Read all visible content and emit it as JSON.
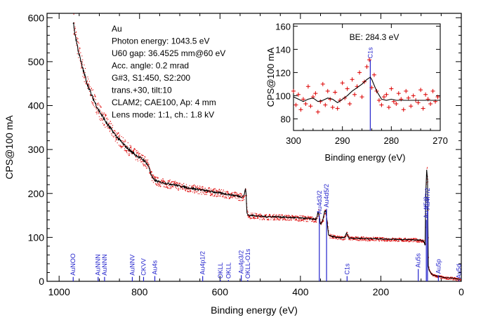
{
  "chart_data": [
    {
      "type": "scatter",
      "name": "main-survey",
      "xlabel": "Binding energy (eV)",
      "ylabel": "CPS@100 mA",
      "xlim": [
        1000,
        0
      ],
      "ylim": [
        0,
        600
      ],
      "xticks": [
        1000,
        800,
        600,
        400,
        200,
        0
      ],
      "yticks": [
        0,
        100,
        200,
        300,
        400,
        500,
        600
      ],
      "colors": {
        "raw": "#dd0000",
        "smoothed": "#000000",
        "markers": "#2222cc"
      },
      "annotations": [
        "Au",
        "Photon energy: 1043.5 eV",
        "U60 gap: 36.4525 mm@60 eV",
        "Acc. angle: 0.2 mrad",
        "G#3, S1:450, S2:200",
        "trans.+30, tilt:10",
        "CLAM2; CAE100, Ap: 4 mm",
        "Lens mode: 1:1, ch.: 1.8 kV"
      ],
      "series_smoothed": {
        "x": [
          965,
          960,
          950,
          940,
          930,
          920,
          910,
          900,
          890,
          880,
          870,
          860,
          850,
          840,
          830,
          820,
          810,
          800,
          790,
          780,
          775,
          770,
          765,
          760,
          750,
          740,
          720,
          700,
          680,
          660,
          640,
          620,
          600,
          580,
          560,
          545,
          540,
          537,
          535,
          533,
          530,
          520,
          500,
          480,
          460,
          440,
          420,
          400,
          380,
          370,
          360,
          356,
          353,
          350,
          345,
          340,
          337,
          333,
          330,
          320,
          310,
          300,
          290,
          285,
          282,
          280,
          270,
          250,
          230,
          210,
          190,
          170,
          150,
          130,
          110,
          100,
          95,
          92,
          90,
          88,
          86,
          84,
          83,
          82,
          80,
          75,
          70,
          60,
          50,
          40,
          30,
          20,
          10,
          5
        ],
        "y": [
          590,
          560,
          515,
          480,
          450,
          425,
          405,
          387,
          372,
          358,
          345,
          333,
          322,
          312,
          303,
          295,
          288,
          282,
          276,
          266,
          255,
          240,
          232,
          229,
          226,
          224,
          221,
          217,
          213,
          210,
          207,
          204,
          201,
          198,
          195,
          192,
          196,
          210,
          200,
          155,
          150,
          150,
          148,
          147,
          147,
          146,
          145,
          144,
          143,
          142,
          141,
          158,
          145,
          130,
          138,
          158,
          160,
          130,
          105,
          102,
          100,
          99,
          100,
          110,
          102,
          99,
          98,
          98,
          97,
          97,
          96,
          96,
          95,
          95,
          94,
          93,
          92,
          88,
          82,
          210,
          255,
          230,
          120,
          35,
          25,
          18,
          14,
          12,
          10,
          8,
          8,
          7,
          5,
          5
        ]
      },
      "peak_markers": [
        {
          "label": "AuNOO",
          "x": 965,
          "y": 10
        },
        {
          "label": "AuNNN",
          "x": 903,
          "y": 10
        },
        {
          "label": "AuNNN",
          "x": 887,
          "y": 10
        },
        {
          "label": "AuNNV",
          "x": 818,
          "y": 10
        },
        {
          "label": "CKVV",
          "x": 790,
          "y": 10
        },
        {
          "label": "Au4s",
          "x": 762,
          "y": 12
        },
        {
          "label": "Au4p1/2",
          "x": 643,
          "y": 12
        },
        {
          "label": "OKLL",
          "x": 599,
          "y": 3
        },
        {
          "label": "OKLL",
          "x": 579,
          "y": 3
        },
        {
          "label": "Au4p3/2",
          "x": 547,
          "y": 14
        },
        {
          "label": "OKLL-O1s",
          "x": 531,
          "y": 3
        },
        {
          "label": "Au4d3/2",
          "x": 353,
          "y": 150
        },
        {
          "label": "Au4d5/2",
          "x": 335,
          "y": 165
        },
        {
          "label": "C1s",
          "x": 284,
          "y": 12
        },
        {
          "label": "Au4f5/2",
          "x": 87,
          "y": 140
        },
        {
          "label": "Au4f7/2",
          "x": 84,
          "y": 160
        },
        {
          "label": "Au5s",
          "x": 107,
          "y": 28
        },
        {
          "label": "Au5p",
          "x": 57,
          "y": 14
        },
        {
          "label": "Au5d",
          "x": 6,
          "y": 3
        }
      ]
    },
    {
      "type": "scatter",
      "name": "inset-c1s",
      "xlabel": "Binding energy (eV)",
      "ylabel": "CPS@100 mA",
      "xlim": [
        300,
        270
      ],
      "ylim": [
        70,
        162
      ],
      "xticks": [
        300,
        290,
        280,
        270
      ],
      "yticks": [
        80,
        100,
        120,
        140,
        160
      ],
      "annotation": "BE: 284.3 eV",
      "marker_label": "C1s",
      "marker_x": 284.3,
      "raw": {
        "x": [
          300,
          299.5,
          299,
          298.5,
          298,
          297.5,
          297,
          296.5,
          296,
          295.5,
          295,
          294.5,
          294,
          293.5,
          293,
          292.5,
          292,
          291.5,
          291,
          290.5,
          290,
          289.5,
          289,
          288.5,
          288,
          287.5,
          287,
          286.5,
          286,
          285.5,
          285,
          284.5,
          284,
          283.5,
          283,
          282.5,
          282,
          281.5,
          281,
          280.5,
          280,
          279.5,
          279,
          278.5,
          278,
          277.5,
          277,
          276.5,
          276,
          275.5,
          275,
          274.5,
          274,
          273.5,
          273,
          272.5,
          272,
          271.5,
          271,
          270.5
        ],
        "y": [
          104,
          92,
          101,
          88,
          97,
          93,
          108,
          91,
          99,
          102,
          86,
          95,
          110,
          92,
          104,
          97,
          90,
          103,
          89,
          96,
          111,
          98,
          106,
          93,
          114,
          101,
          108,
          120,
          99,
          112,
          125,
          131,
          107,
          118,
          104,
          96,
          92,
          99,
          101,
          90,
          106,
          95,
          93,
          102,
          97,
          88,
          104,
          98,
          91,
          100,
          96,
          94,
          105,
          89,
          101,
          97,
          93,
          104,
          95,
          99
        ]
      },
      "smoothed": {
        "x": [
          300,
          299,
          298,
          297,
          296,
          295,
          294,
          293,
          292,
          291,
          290,
          289,
          288,
          287,
          286,
          285,
          284.3,
          284,
          283,
          282,
          281,
          280,
          279,
          278,
          277,
          276,
          275,
          274,
          273,
          272,
          271,
          270
        ],
        "y": [
          99,
          97,
          95,
          97,
          98,
          95,
          96,
          98,
          97,
          94,
          97,
          100,
          104,
          107,
          110,
          114,
          116,
          114,
          104,
          97,
          96,
          97,
          96,
          96,
          96,
          96,
          96,
          96,
          96,
          96,
          96,
          96
        ]
      }
    }
  ]
}
